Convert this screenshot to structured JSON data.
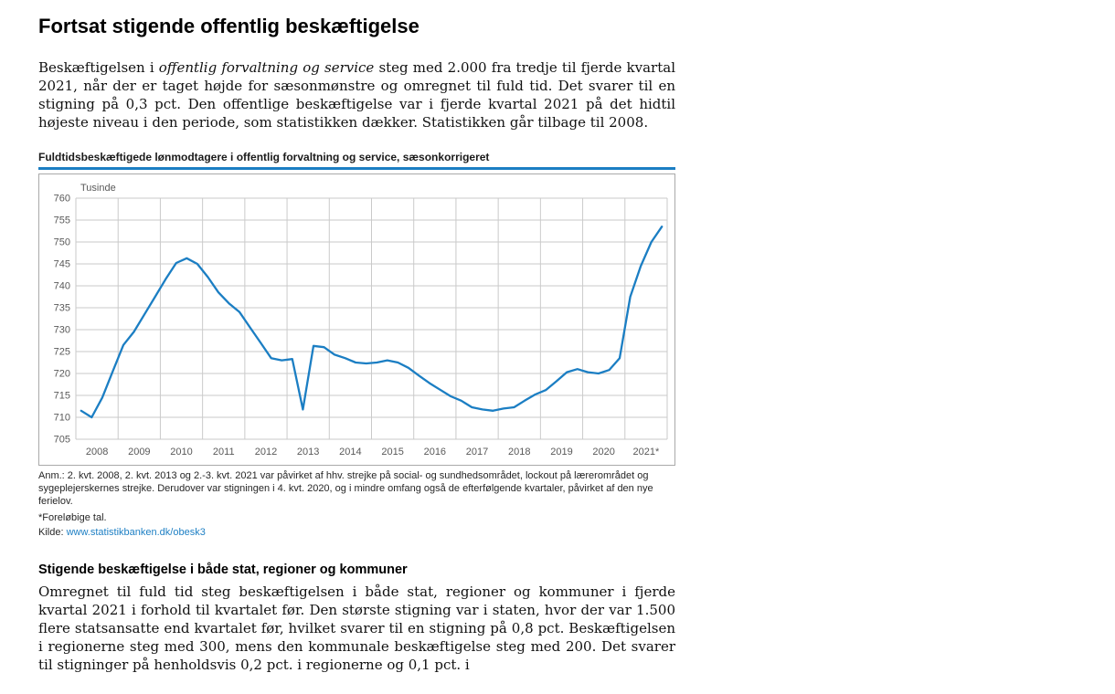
{
  "page_title": "Fortsat stigende offentlig beskæftigelse",
  "intro": {
    "pre": "Beskæftigelsen i ",
    "italic": "offentlig forvaltning og service",
    "post": " steg med 2.000 fra tredje til fjerde kvartal 2021, når der er taget højde for sæsonmønstre og omregnet til fuld tid. Det svarer til en stigning på 0,3 pct. Den offentlige beskæftigelse var i fjerde kvartal 2021 på det hidtil højeste niveau i den periode, som statistikken dækker. Statistikken går tilbage til 2008."
  },
  "figure": {
    "title": "Fuldtidsbeskæftigede lønmodtagere i offentlig forvaltning og service, sæsonkorrigeret",
    "note": "Anm.: 2. kvt. 2008, 2. kvt. 2013 og 2.-3. kvt. 2021 var påvirket af hhv. strejke på social- og sundhedsområdet, lockout på lærerområdet og sygeplejerskernes strejke. Derudover var stigningen i 4. kvt. 2020, og i mindre omfang også de efterfølgende kvartaler, påvirket af den nye ferielov.",
    "footnote": "*Foreløbige tal.",
    "source_label": "Kilde: ",
    "source_link": "www.statistikbanken.dk/obesk3"
  },
  "section": {
    "heading": "Stigende beskæftigelse i både stat, regioner og kommuner",
    "body": "Omregnet til fuld tid steg beskæftigelsen i både stat, regioner og kommuner i fjerde kvartal 2021 i forhold til kvartalet før. Den største stigning var i staten, hvor der var 1.500 flere statsansatte end kvartalet før, hvilket svarer til en stigning på 0,8 pct. Beskæftigelsen i regionerne steg med 300, mens den kommunale beskæftigelse steg med 200. Det svarer til stigninger på henholdsvis 0,2 pct. i regionerne og 0,1 pct. i"
  },
  "chart_data": {
    "type": "line",
    "title": "Fuldtidsbeskæftigede lønmodtagere i offentlig forvaltning og service, sæsonkorrigeret",
    "ylabel": "Tusinde",
    "ylim": [
      705,
      760
    ],
    "ytick_step": 5,
    "grid": true,
    "legend_position": "none",
    "line_color": "#1b7ec3",
    "grid_color": "#cacaca",
    "years": [
      "2008",
      "2009",
      "2010",
      "2011",
      "2012",
      "2013",
      "2014",
      "2015",
      "2016",
      "2017",
      "2018",
      "2019",
      "2020",
      "2021*"
    ],
    "quarterly_values": [
      711.5,
      710.0,
      714.5,
      720.5,
      726.5,
      729.5,
      733.5,
      737.5,
      741.5,
      745.2,
      746.3,
      745.0,
      742.0,
      738.5,
      736.0,
      734.0,
      730.5,
      727.0,
      723.5,
      723.0,
      723.3,
      711.8,
      726.3,
      726.0,
      724.3,
      723.5,
      722.5,
      722.3,
      722.5,
      723.0,
      722.5,
      721.3,
      719.5,
      717.8,
      716.3,
      714.8,
      713.8,
      712.3,
      711.8,
      711.5,
      712.0,
      712.3,
      713.8,
      715.2,
      716.2,
      718.2,
      720.3,
      721.0,
      720.3,
      720.0,
      720.8,
      723.5,
      737.5,
      744.5,
      750.0,
      753.5
    ]
  }
}
